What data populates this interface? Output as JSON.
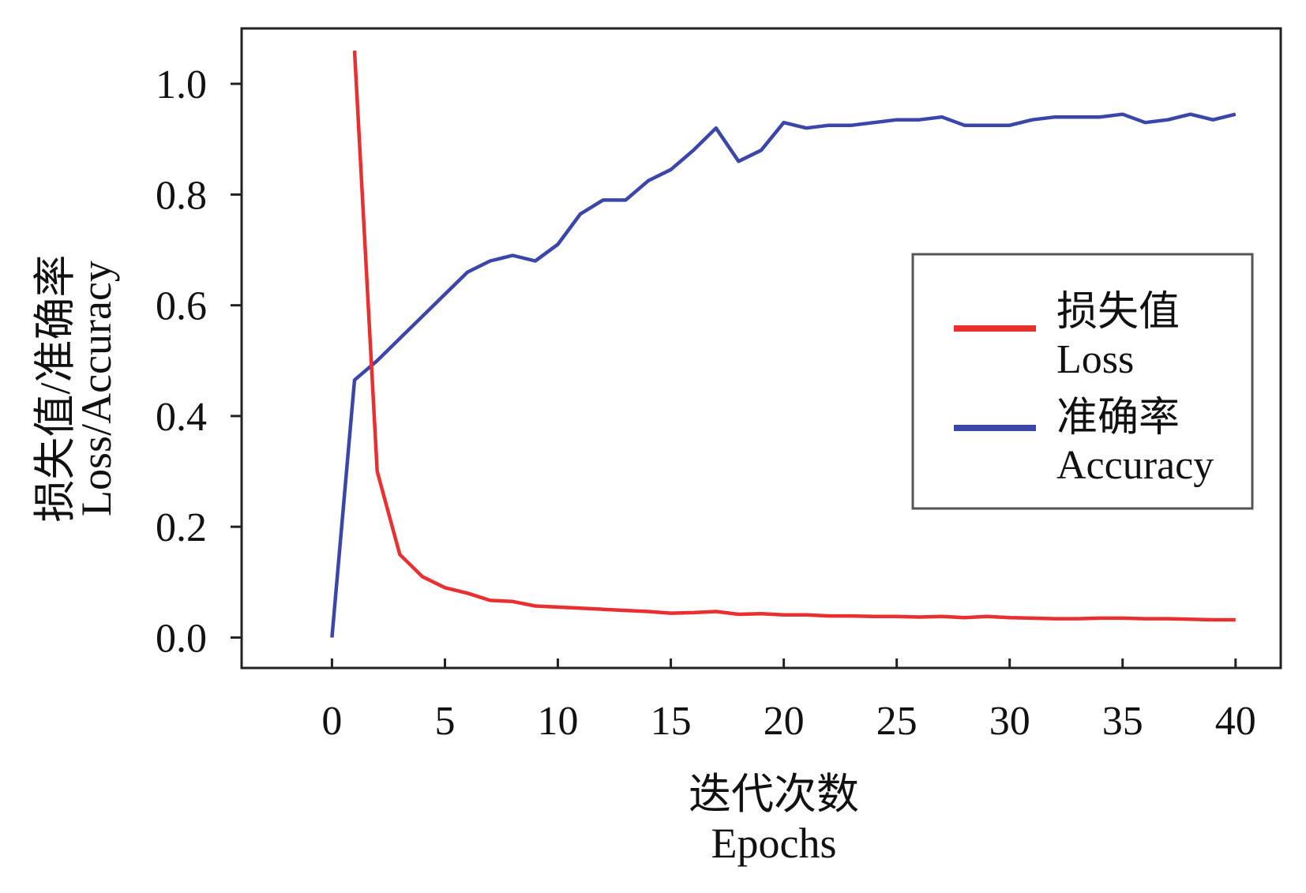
{
  "chart_data": {
    "type": "line",
    "title": "",
    "xlabel_cn": "迭代次数",
    "xlabel_en": "Epochs",
    "ylabel_cn": "损失值/准确率",
    "ylabel_en": "Loss/Accuracy",
    "xlim": [
      -4,
      42
    ],
    "ylim": [
      -0.055,
      1.1
    ],
    "xticks": [
      "0",
      "5",
      "10",
      "15",
      "20",
      "25",
      "30",
      "35",
      "40"
    ],
    "yticks": [
      "0.0",
      "0.2",
      "0.4",
      "0.6",
      "0.8",
      "1.0"
    ],
    "grid": false,
    "legend_position": "right",
    "series": [
      {
        "key": "loss",
        "name_cn": "损失值",
        "name_en": "Loss",
        "color": "#e83030",
        "x": [
          1,
          2,
          3,
          4,
          5,
          6,
          7,
          8,
          9,
          10,
          11,
          12,
          13,
          14,
          15,
          16,
          17,
          18,
          19,
          20,
          21,
          22,
          23,
          24,
          25,
          26,
          27,
          28,
          29,
          30,
          31,
          32,
          33,
          34,
          35,
          36,
          37,
          38,
          39,
          40
        ],
        "values": [
          1.06,
          0.3,
          0.15,
          0.11,
          0.09,
          0.08,
          0.067,
          0.065,
          0.057,
          0.055,
          0.053,
          0.051,
          0.049,
          0.047,
          0.044,
          0.045,
          0.047,
          0.042,
          0.043,
          0.041,
          0.041,
          0.039,
          0.039,
          0.038,
          0.038,
          0.037,
          0.038,
          0.036,
          0.038,
          0.036,
          0.035,
          0.034,
          0.034,
          0.035,
          0.035,
          0.034,
          0.034,
          0.033,
          0.032,
          0.032
        ]
      },
      {
        "key": "accuracy",
        "name_cn": "准确率",
        "name_en": "Accuracy",
        "color": "#3b47a8",
        "x": [
          0,
          1,
          2,
          3,
          4,
          5,
          6,
          7,
          8,
          9,
          10,
          11,
          12,
          13,
          14,
          15,
          16,
          17,
          18,
          19,
          20,
          21,
          22,
          23,
          24,
          25,
          26,
          27,
          28,
          29,
          30,
          31,
          32,
          33,
          34,
          35,
          36,
          37,
          38,
          39,
          40
        ],
        "values": [
          0.0,
          0.465,
          0.5,
          0.54,
          0.58,
          0.62,
          0.66,
          0.68,
          0.69,
          0.68,
          0.71,
          0.765,
          0.79,
          0.79,
          0.825,
          0.845,
          0.88,
          0.92,
          0.86,
          0.88,
          0.93,
          0.92,
          0.925,
          0.925,
          0.93,
          0.935,
          0.935,
          0.94,
          0.925,
          0.925,
          0.925,
          0.935,
          0.94,
          0.94,
          0.94,
          0.945,
          0.93,
          0.935,
          0.945,
          0.935,
          0.945
        ]
      }
    ]
  }
}
